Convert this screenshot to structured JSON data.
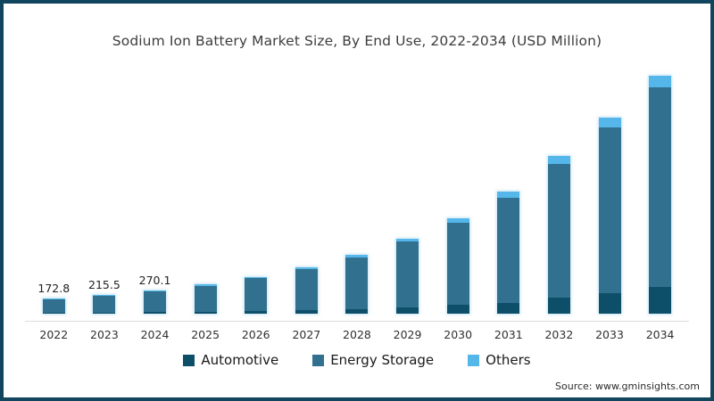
{
  "title": "Sodium Ion Battery Market Size, By End Use, 2022-2034 (USD Million)",
  "source": "Source: www.gminsights.com",
  "colors": {
    "border": "#10455d",
    "background": "#ffffff",
    "axis_line": "#dcdcdc",
    "title_text": "#3d3d3d",
    "automotive": "#0d4f68",
    "energy_storage": "#31708f",
    "others": "#55b6ea"
  },
  "chart_data": {
    "type": "bar",
    "stacked": true,
    "title": "Sodium Ion Battery Market Size, By End Use, 2022-2034 (USD Million)",
    "unit": "USD Million",
    "categories": [
      "2022",
      "2023",
      "2024",
      "2025",
      "2026",
      "2027",
      "2028",
      "2029",
      "2030",
      "2031",
      "2032",
      "2033",
      "2034"
    ],
    "series": [
      {
        "name": "Automotive",
        "color": "#0d4f68",
        "values": [
          12.1,
          15.5,
          20,
          26,
          33,
          43,
          55,
          72,
          105,
          130,
          185,
          240,
          310
        ]
      },
      {
        "name": "Energy Storage",
        "color": "#31708f",
        "values": [
          153.8,
          191.4,
          239.3,
          300,
          379,
          478,
          604,
          768,
          958,
          1225,
          1560,
          1940,
          2338
        ]
      },
      {
        "name": "Others",
        "color": "#55b6ea",
        "values": [
          6.9,
          8.6,
          10.8,
          14,
          18,
          24,
          31,
          40,
          52,
          70,
          95,
          105,
          132
        ]
      }
    ],
    "totals": [
      172.8,
      215.5,
      270.1,
      340,
      430,
      545,
      690,
      880,
      1115,
      1425,
      1840,
      2285,
      2780
    ],
    "data_labels": [
      "172.8",
      "215.5",
      "270.1",
      "",
      "",
      "",
      "",
      "",
      "",
      "",
      "",
      "",
      ""
    ],
    "ylim": [
      0,
      2800
    ],
    "grid": false,
    "legend_position": "bottom"
  }
}
